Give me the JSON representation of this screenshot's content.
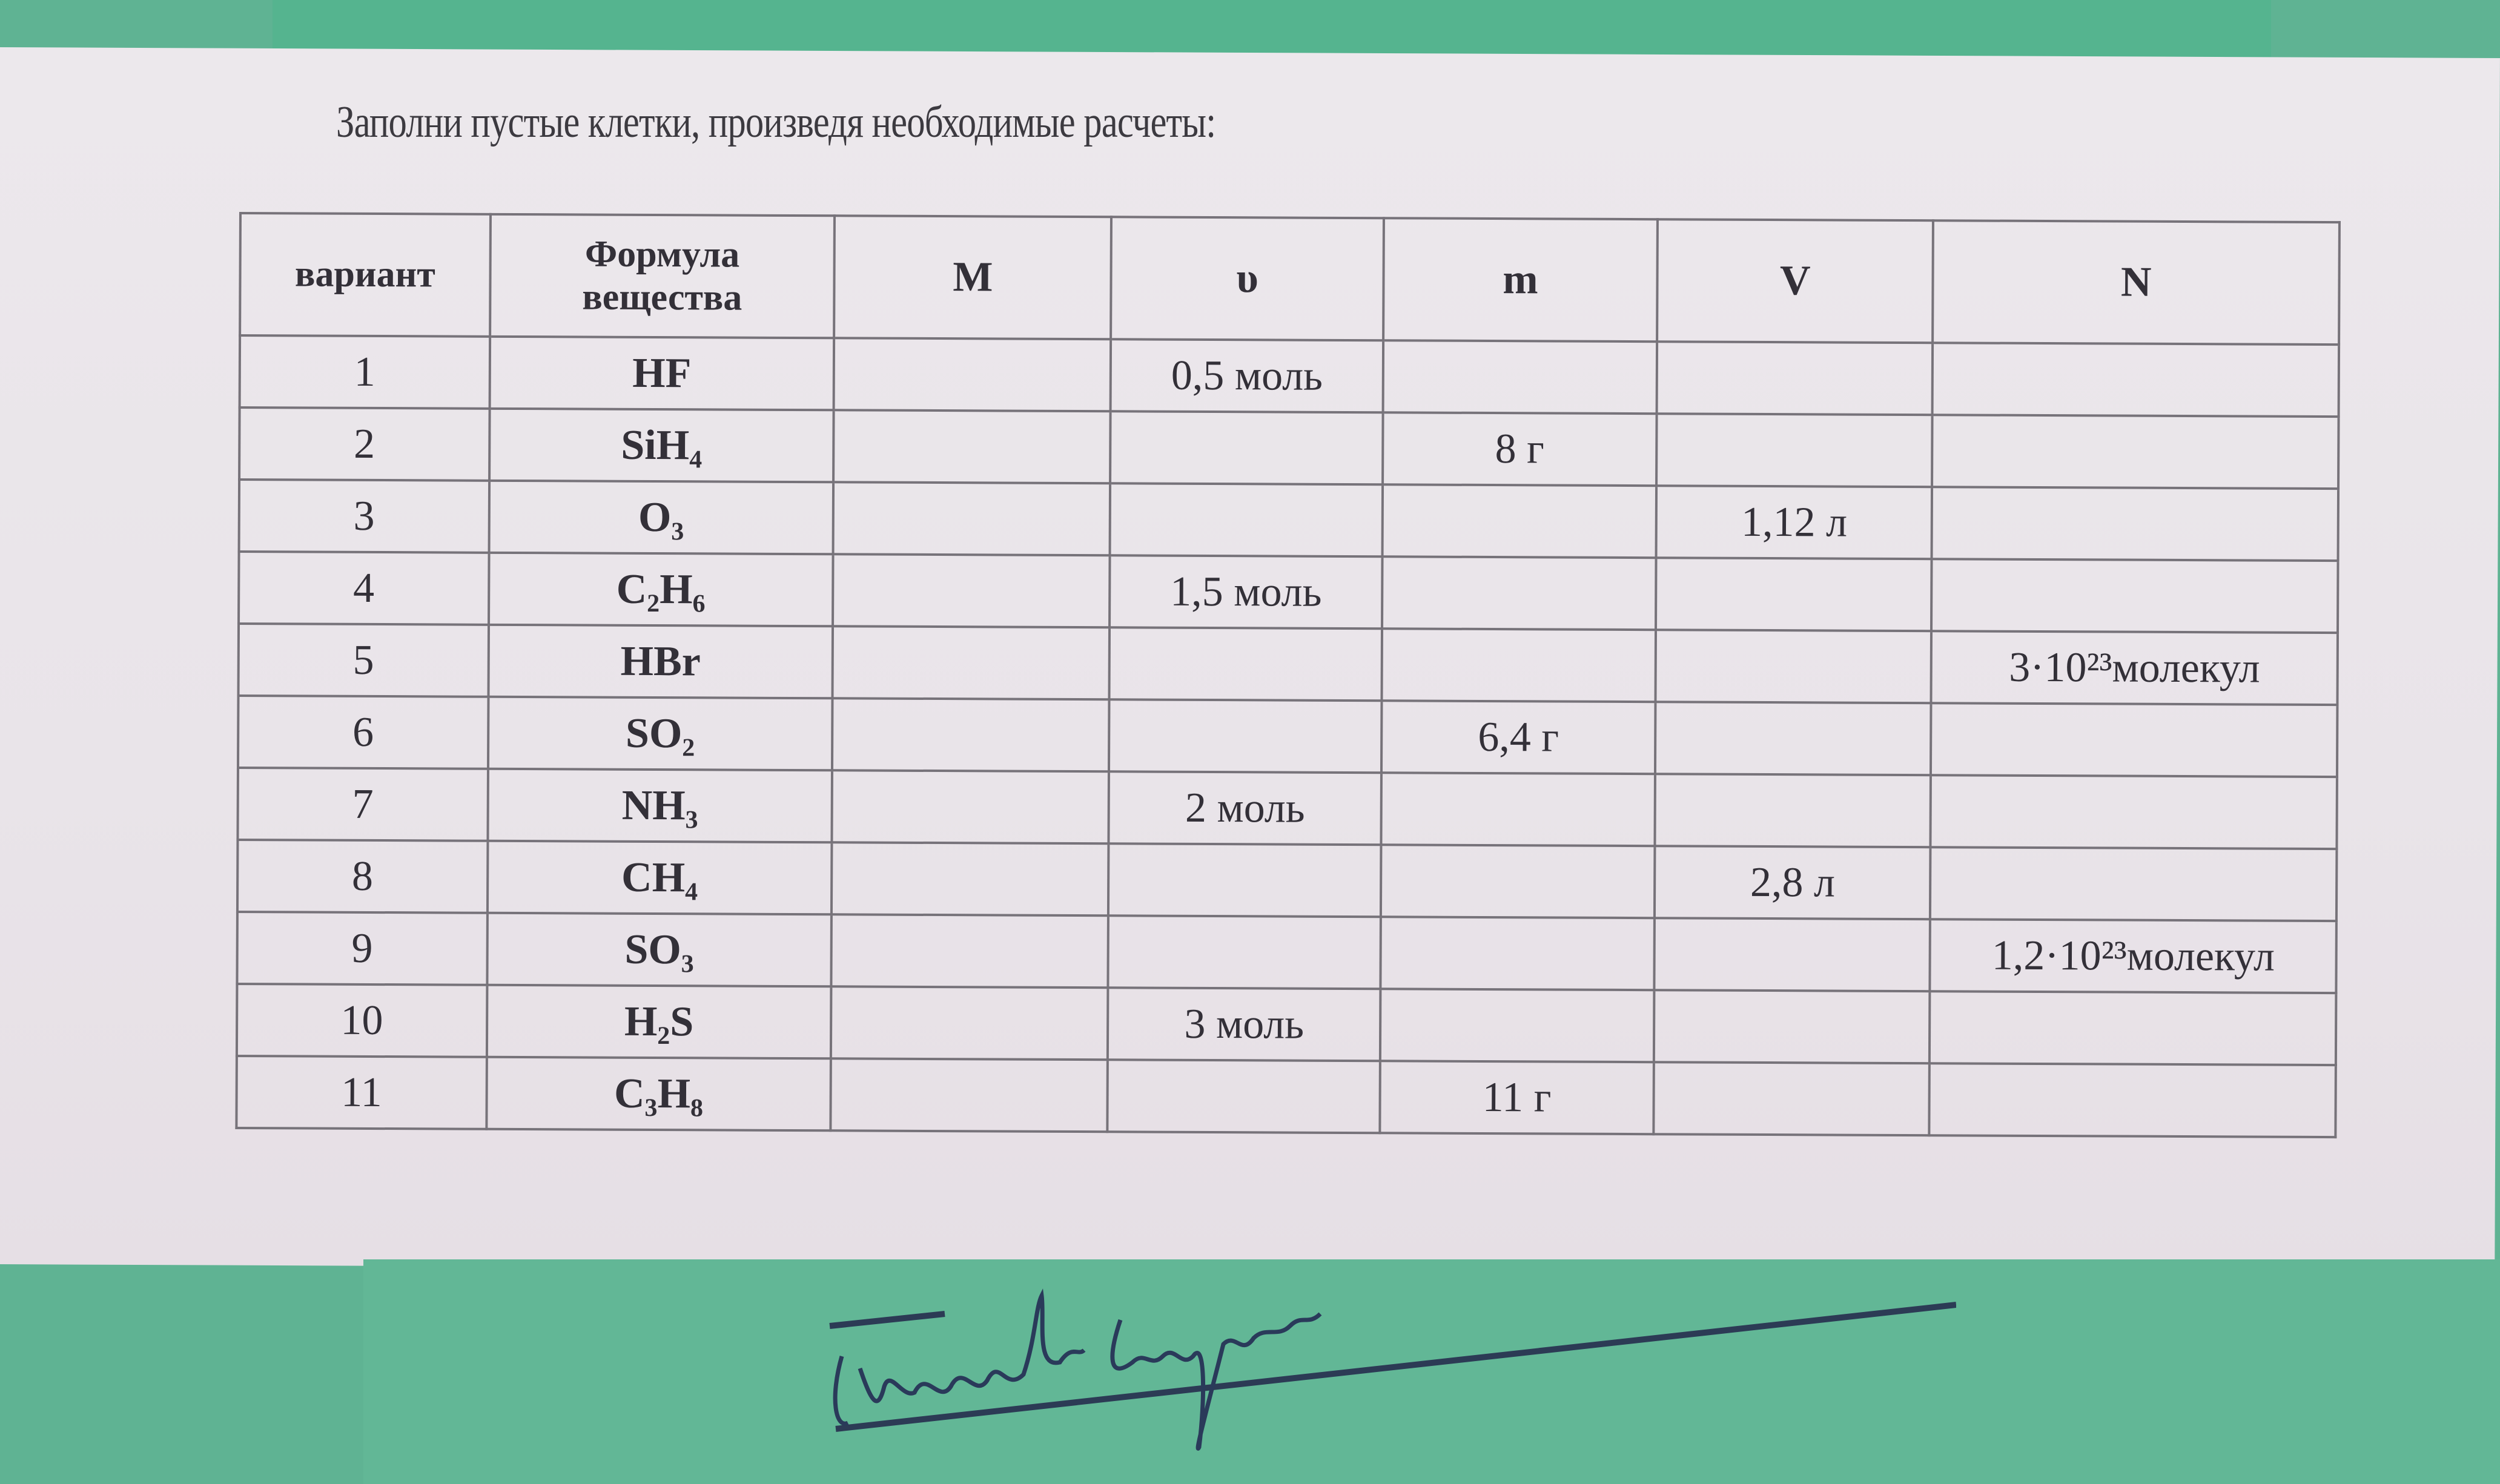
{
  "instruction": "Заполни пустые клетки, произведя необходимые расчеты:",
  "table": {
    "headers": [
      "вариант",
      "Формула вещества",
      "M",
      "υ",
      "m",
      "V",
      "N"
    ],
    "rows": [
      {
        "variant": "1",
        "formula": "HF",
        "M": "",
        "n": "0,5 моль",
        "m": "",
        "V": "",
        "N": ""
      },
      {
        "variant": "2",
        "formula": "SiH₄",
        "M": "",
        "n": "",
        "m": "8 г",
        "V": "",
        "N": ""
      },
      {
        "variant": "3",
        "formula": "O₃",
        "M": "",
        "n": "",
        "m": "",
        "V": "1,12 л",
        "N": ""
      },
      {
        "variant": "4",
        "formula": "C₂H₆",
        "M": "",
        "n": "1,5 моль",
        "m": "",
        "V": "",
        "N": ""
      },
      {
        "variant": "5",
        "formula": "HBr",
        "M": "",
        "n": "",
        "m": "",
        "V": "",
        "N": "3·10²³молекул"
      },
      {
        "variant": "6",
        "formula": "SO₂",
        "M": "",
        "n": "",
        "m": "6,4 г",
        "V": "",
        "N": ""
      },
      {
        "variant": "7",
        "formula": "NH₃",
        "M": "",
        "n": "2 моль",
        "m": "",
        "V": "",
        "N": ""
      },
      {
        "variant": "8",
        "formula": "CH₄",
        "M": "",
        "n": "",
        "m": "",
        "V": "2,8 л",
        "N": ""
      },
      {
        "variant": "9",
        "formula": "SO₃",
        "M": "",
        "n": "",
        "m": "",
        "V": "",
        "N": "1,2·10²³молекул"
      },
      {
        "variant": "10",
        "formula": "H₂S",
        "M": "",
        "n": "3 моль",
        "m": "",
        "V": "",
        "N": ""
      },
      {
        "variant": "11",
        "formula": "C₃H₈",
        "M": "",
        "n": "",
        "m": "11 г",
        "V": "",
        "N": ""
      }
    ]
  },
  "signature": "Черношова Смуталин",
  "colors": {
    "paper": "#ebe6eb",
    "background": "#5fb393",
    "ink": "#333038",
    "handwriting": "#2a3a5a"
  }
}
